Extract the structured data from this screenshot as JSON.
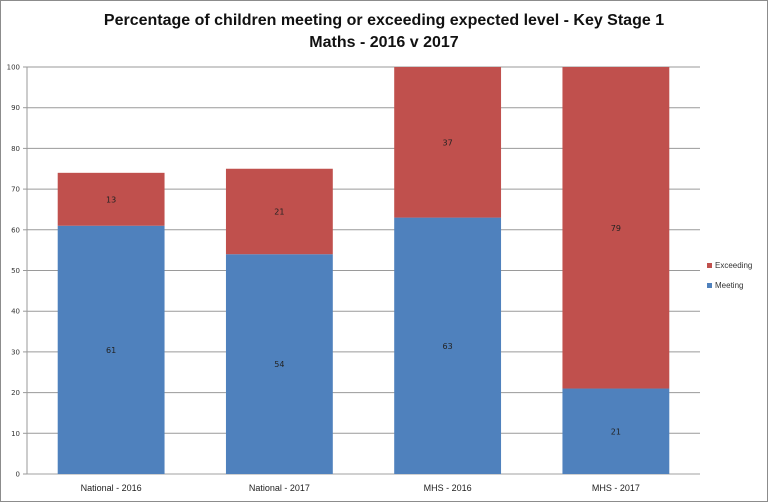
{
  "chart_data": {
    "type": "bar",
    "stacked": true,
    "title": "Percentage of children meeting or exceeding expected level - Key Stage 1",
    "subtitle": "Maths - 2016 v 2017",
    "xlabel": "",
    "ylabel": "",
    "ylim": [
      0,
      100
    ],
    "yticks": [
      0,
      10,
      20,
      30,
      40,
      50,
      60,
      70,
      80,
      90,
      100
    ],
    "grid": true,
    "legend_position": "right",
    "categories": [
      "National - 2016",
      "National - 2017",
      "MHS - 2016",
      "MHS - 2017"
    ],
    "series": [
      {
        "name": "Meeting",
        "color": "#4f81bd",
        "values": [
          61,
          54,
          63,
          21
        ]
      },
      {
        "name": "Exceeding",
        "color": "#c0504d",
        "values": [
          13,
          21,
          37,
          79
        ]
      }
    ],
    "legend": [
      "Exceeding",
      "Meeting"
    ]
  }
}
